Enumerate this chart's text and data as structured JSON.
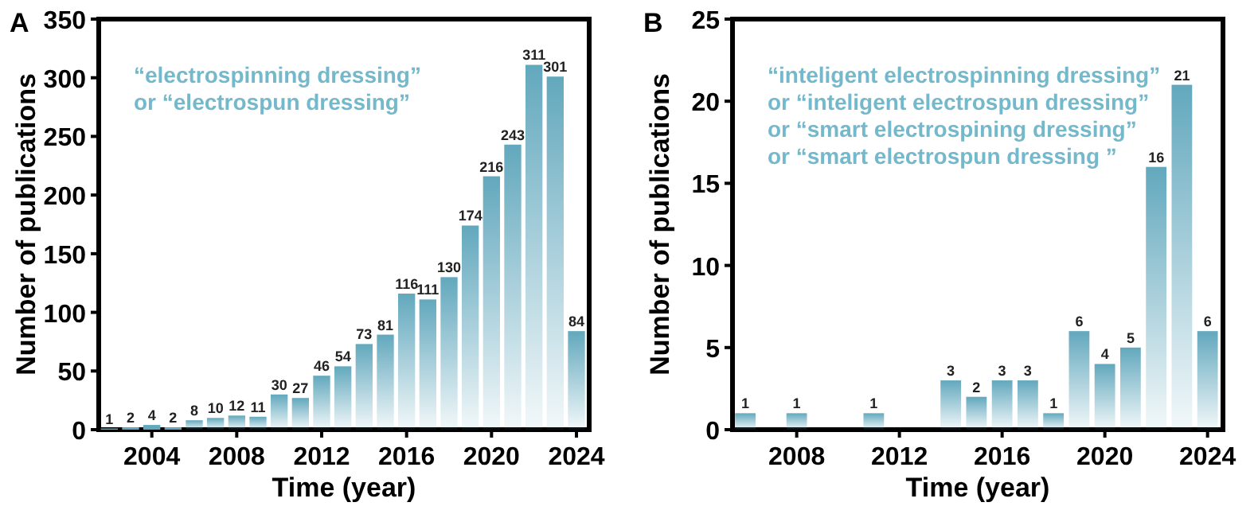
{
  "chart_data": [
    {
      "type": "bar",
      "title": "A",
      "xlabel": "Time (year)",
      "ylabel": "Number of publications",
      "x": [
        2002,
        2003,
        2004,
        2005,
        2006,
        2007,
        2008,
        2009,
        2010,
        2011,
        2012,
        2013,
        2014,
        2015,
        2016,
        2017,
        2018,
        2019,
        2020,
        2021,
        2022,
        2023,
        2024
      ],
      "values": [
        1,
        2,
        4,
        2,
        8,
        10,
        12,
        11,
        30,
        27,
        46,
        54,
        73,
        81,
        116,
        111,
        130,
        174,
        216,
        243,
        311,
        301,
        84
      ],
      "color": "#62a8bd",
      "data_labels": true,
      "xlim": [
        2001.5,
        2024.6
      ],
      "xticks": [
        2004,
        2008,
        2012,
        2016,
        2020,
        2024
      ],
      "ylim": [
        0,
        350
      ],
      "yticks": [
        0,
        50,
        100,
        150,
        200,
        250,
        300,
        350
      ],
      "annotations": [
        "“electrospinning dressing”",
        "or “electrospun dressing”"
      ]
    },
    {
      "type": "bar",
      "title": "B",
      "xlabel": "Time (year)",
      "ylabel": "Number of publications",
      "x": [
        2006,
        2008,
        2011,
        2014,
        2015,
        2016,
        2017,
        2018,
        2019,
        2020,
        2021,
        2022,
        2023,
        2024
      ],
      "values": [
        1,
        1,
        1,
        3,
        2,
        3,
        3,
        1,
        6,
        4,
        5,
        16,
        21,
        6
      ],
      "color": "#62a8bd",
      "data_labels": true,
      "xlim": [
        2005.5,
        2024.6
      ],
      "xticks": [
        2008,
        2012,
        2016,
        2020,
        2024
      ],
      "ylim": [
        0,
        25
      ],
      "yticks": [
        0,
        5,
        10,
        15,
        20,
        25
      ],
      "annotations": [
        "“inteligent electrospinning dressing”",
        "or “inteligent electrospun dressing”",
        "or “smart electrospining dressing”",
        "or “smart electrospun dressing ”"
      ]
    }
  ]
}
